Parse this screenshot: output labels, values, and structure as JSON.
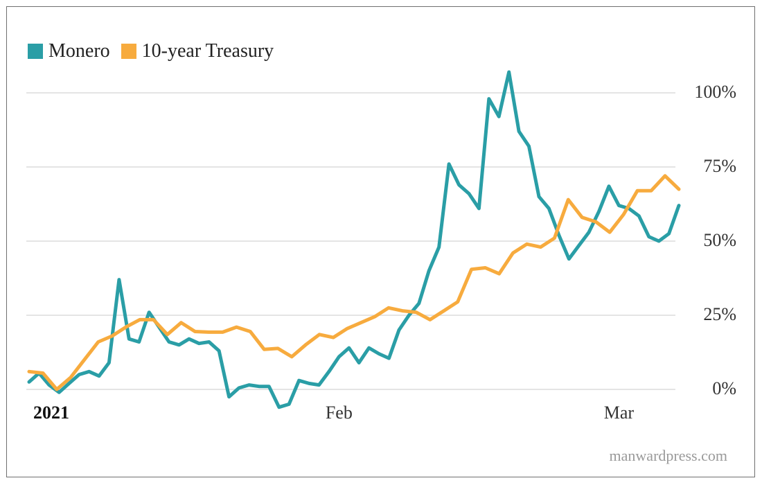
{
  "source": "manwardpress.com",
  "colors": {
    "monero": "#2a9ea6",
    "treasury": "#f7ab3e",
    "grid": "#dcdcdc"
  },
  "chart_data": {
    "type": "line",
    "y_unit": "%",
    "ylim": [
      0,
      100
    ],
    "y_ticks": [
      "0%",
      "25%",
      "50%",
      "75%",
      "100%"
    ],
    "y_tick_values": [
      0,
      25,
      50,
      75,
      100
    ],
    "grid": true,
    "legend_position": "top-left",
    "x_ticks": [
      {
        "label": "2021",
        "index": 0,
        "bold": true
      },
      {
        "label": "Feb",
        "index": 31
      },
      {
        "label": "Mar",
        "index": 59
      }
    ],
    "series": [
      {
        "name": "Monero",
        "color": "#2a9ea6",
        "values": [
          2.5,
          5.5,
          1.5,
          -1,
          2,
          5,
          6,
          4.5,
          9,
          37,
          17,
          16,
          26,
          21,
          16,
          15,
          17,
          15.5,
          16,
          13,
          -2.5,
          0.5,
          1.5,
          1,
          1,
          -6,
          -5,
          3,
          2,
          1.5,
          6,
          11,
          14,
          9,
          14,
          12,
          10.5,
          20,
          25,
          29,
          40,
          48,
          76,
          69,
          66,
          61,
          98,
          92,
          107,
          87,
          82,
          65,
          61,
          52,
          44,
          48.5,
          53,
          60,
          68.5,
          62,
          61,
          58.5,
          51.5,
          50,
          52.5,
          62
        ]
      },
      {
        "name": "10-year Treasury",
        "color": "#f7ab3e",
        "values": [
          6,
          5.5,
          0,
          4,
          10,
          16,
          18,
          21,
          23.5,
          23.5,
          18.5,
          22.5,
          19.5,
          19.3,
          19.3,
          21,
          19.5,
          13.5,
          13.8,
          11,
          15,
          18.5,
          17.5,
          20.5,
          22.5,
          24.5,
          27.5,
          26.5,
          26,
          23.5,
          26.5,
          29.5,
          40.5,
          41,
          39,
          46,
          49,
          48,
          51,
          64,
          58,
          56.5,
          53,
          59,
          67,
          67,
          72,
          67.5
        ]
      }
    ]
  }
}
